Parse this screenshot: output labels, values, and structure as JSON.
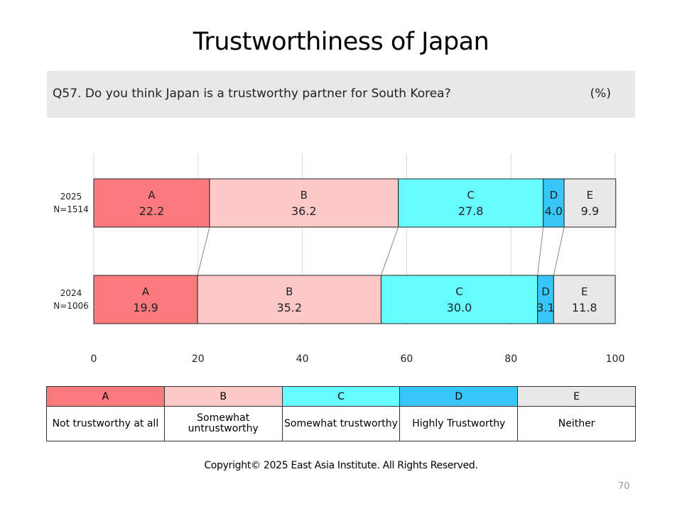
{
  "page": {
    "title": "Trustworthiness of Japan",
    "question": "Q57. Do you think Japan is a trustworthy partner for South Korea?",
    "unit": "(%)",
    "copyright": "Copyright© 2025 East Asia Institute. All Rights Reserved.",
    "page_number": "70"
  },
  "colors": {
    "A": "#fb7a7e",
    "B": "#fdc8c8",
    "C": "#66fcff",
    "D": "#38c6f9",
    "E": "#e8e8e8"
  },
  "legend": [
    {
      "code": "A",
      "label": "Not trustworthy at all"
    },
    {
      "code": "B",
      "label": "Somewhat untrustworthy"
    },
    {
      "code": "C",
      "label": "Somewhat trustworthy"
    },
    {
      "code": "D",
      "label": "Highly Trustworthy"
    },
    {
      "code": "E",
      "label": "Neither"
    }
  ],
  "chart_data": {
    "type": "bar",
    "orientation": "horizontal",
    "stacked": true,
    "categories": [
      {
        "year": "2025",
        "n": "N=1514"
      },
      {
        "year": "2024",
        "n": "N=1006"
      }
    ],
    "series": [
      {
        "name": "A",
        "values": [
          22.2,
          19.9
        ]
      },
      {
        "name": "B",
        "values": [
          36.2,
          35.2
        ]
      },
      {
        "name": "C",
        "values": [
          27.8,
          30.0
        ]
      },
      {
        "name": "D",
        "values": [
          4.0,
          3.1
        ]
      },
      {
        "name": "E",
        "values": [
          9.9,
          11.8
        ]
      }
    ],
    "xlim": [
      0,
      100
    ],
    "xticks": [
      0,
      20,
      40,
      60,
      80,
      100
    ],
    "grid": true,
    "connector_lines": true
  }
}
